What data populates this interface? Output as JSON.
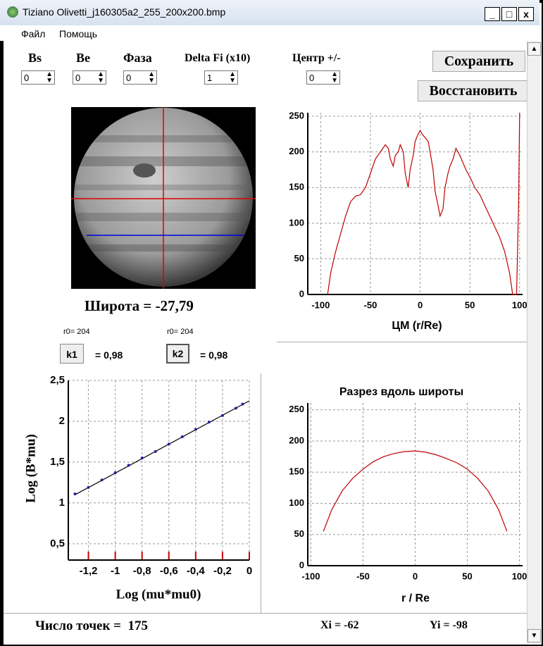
{
  "window": {
    "title": "Tiziano Olivetti_j160305a2_255_200x200.bmp",
    "menu": [
      "Файл",
      "Помощь"
    ]
  },
  "controls": {
    "fields": [
      {
        "label": "Bs",
        "value": 0
      },
      {
        "label": "Be",
        "value": 0
      },
      {
        "label": "Фаза",
        "value": 0
      },
      {
        "label": "Delta  Fi  (x10)",
        "value": 1
      },
      {
        "label": "Центр +/-",
        "value": 0
      }
    ],
    "buttons": [
      "Сохранить",
      "Восстановить"
    ]
  },
  "image": {
    "caption": "Широта = -27,79"
  },
  "coefficients": [
    {
      "r0": "r0= 204",
      "button": "k1",
      "value": "= 0,98"
    },
    {
      "r0": "r0= 204",
      "button": "k2",
      "value": "= 0,98"
    }
  ],
  "status": {
    "points": "Число точек =  175",
    "xi": "Xi = -62",
    "yi": "Yi = -98"
  },
  "chart_data": [
    {
      "type": "line",
      "x_label": "ЦМ (r/Re)",
      "color": "#c00000",
      "grid": true,
      "x": [
        -93,
        -90,
        -85,
        -80,
        -75,
        -70,
        -65,
        -60,
        -55,
        -50,
        -45,
        -40,
        -35,
        -32,
        -30,
        -27,
        -25,
        -22,
        -20,
        -17,
        -15,
        -12,
        -10,
        -7,
        -5,
        -2,
        0,
        2,
        5,
        8,
        10,
        13,
        15,
        18,
        20,
        23,
        25,
        28,
        30,
        33,
        36,
        40,
        43,
        46,
        50,
        55,
        60,
        65,
        70,
        75,
        80,
        85,
        90,
        93,
        97,
        99,
        100
      ],
      "values": [
        0,
        30,
        60,
        85,
        110,
        130,
        138,
        140,
        150,
        170,
        190,
        200,
        210,
        205,
        190,
        180,
        195,
        200,
        210,
        200,
        170,
        150,
        175,
        195,
        215,
        225,
        230,
        225,
        220,
        215,
        200,
        175,
        145,
        125,
        110,
        120,
        150,
        170,
        180,
        190,
        205,
        195,
        185,
        175,
        165,
        150,
        140,
        125,
        110,
        95,
        80,
        60,
        30,
        0,
        0,
        130,
        255
      ],
      "xlim": [
        -113,
        103
      ],
      "ylim": [
        0,
        255
      ],
      "xticks": [
        -100,
        -50,
        0,
        50,
        100
      ],
      "yticks": [
        0,
        50,
        100,
        150,
        200,
        250
      ]
    },
    {
      "type": "line",
      "title": "Разрез вдоль широты",
      "x_label": "r / Re",
      "color": "#c00000",
      "grid": true,
      "x": [
        -88,
        -80,
        -70,
        -60,
        -50,
        -40,
        -30,
        -20,
        -10,
        0,
        10,
        20,
        30,
        40,
        50,
        60,
        70,
        80,
        88
      ],
      "values": [
        55,
        90,
        120,
        140,
        155,
        167,
        175,
        180,
        183,
        184,
        182,
        178,
        172,
        165,
        155,
        140,
        120,
        90,
        55
      ],
      "xlim": [
        -103,
        103
      ],
      "ylim": [
        0,
        261
      ],
      "xticks": [
        -100,
        -50,
        0,
        50,
        100
      ],
      "yticks": [
        0,
        50,
        100,
        150,
        200,
        250
      ]
    },
    {
      "type": "scatter",
      "x_label": "Log (mu*mu0)",
      "y_label": "Log (B*mu)",
      "color": "#2020a0",
      "grid": true,
      "x": [
        -1.3,
        -1.2,
        -1.1,
        -1.0,
        -0.9,
        -0.8,
        -0.7,
        -0.6,
        -0.5,
        -0.4,
        -0.3,
        -0.2,
        -0.1,
        -0.05
      ],
      "values": [
        1.11,
        1.19,
        1.28,
        1.37,
        1.46,
        1.55,
        1.63,
        1.72,
        1.81,
        1.9,
        1.99,
        2.07,
        2.16,
        2.21
      ],
      "trend_line": {
        "x": [
          -1.3,
          0
        ],
        "values": [
          1.1,
          2.25
        ],
        "color": "#000000"
      },
      "xlim": [
        -1.35,
        0
      ],
      "ylim": [
        0.3,
        2.5
      ],
      "xticks": [
        {
          "value": -1.2,
          "label": "-1,2"
        },
        -1,
        {
          "value": -0.8,
          "label": "-0,8"
        },
        {
          "value": -0.6,
          "label": "-0,6"
        },
        {
          "value": -0.4,
          "label": "-0,4"
        },
        {
          "value": -0.2,
          "label": "-0,2"
        },
        0
      ],
      "yticks": [
        {
          "value": 0.5,
          "label": "0,5"
        },
        1,
        {
          "value": 1.5,
          "label": "1,5"
        },
        2,
        {
          "value": 2.5,
          "label": "2,5"
        }
      ]
    }
  ]
}
